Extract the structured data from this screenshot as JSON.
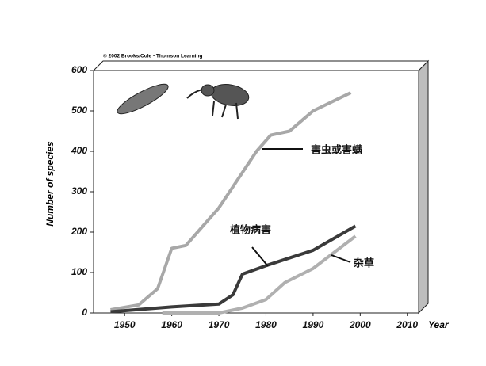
{
  "chart_data": {
    "type": "line",
    "source": "© 2002 Brooks/Cole - Thomson Learning",
    "y_label": "Number of species",
    "x_label": "Year",
    "xlim": [
      1943.4,
      2012.4
    ],
    "ylim": [
      0,
      600
    ],
    "xticks": [
      1950,
      1960,
      1970,
      1980,
      1990,
      2000,
      2010
    ],
    "yticks": [
      0,
      100,
      200,
      300,
      400,
      500,
      600
    ],
    "series": [
      {
        "name": "害虫或害螨",
        "color": "#a8a8a8",
        "x": [
          1947,
          1953,
          1957,
          1960,
          1963,
          1970,
          1978,
          1981,
          1985,
          1990,
          1998
        ],
        "values": [
          8,
          20,
          60,
          160,
          167,
          260,
          400,
          440,
          450,
          500,
          545
        ]
      },
      {
        "name": "植物病害",
        "color": "#3a3a3a",
        "x": [
          1947,
          1960,
          1970,
          1973,
          1975,
          1980,
          1990,
          1999
        ],
        "values": [
          3,
          15,
          22,
          45,
          96,
          117,
          155,
          215
        ]
      },
      {
        "name": "杂草",
        "color": "#b0b0b0",
        "x": [
          1958,
          1970,
          1975,
          1980,
          1984,
          1990,
          1999
        ],
        "values": [
          0,
          0,
          12,
          33,
          75,
          110,
          190
        ]
      }
    ]
  }
}
